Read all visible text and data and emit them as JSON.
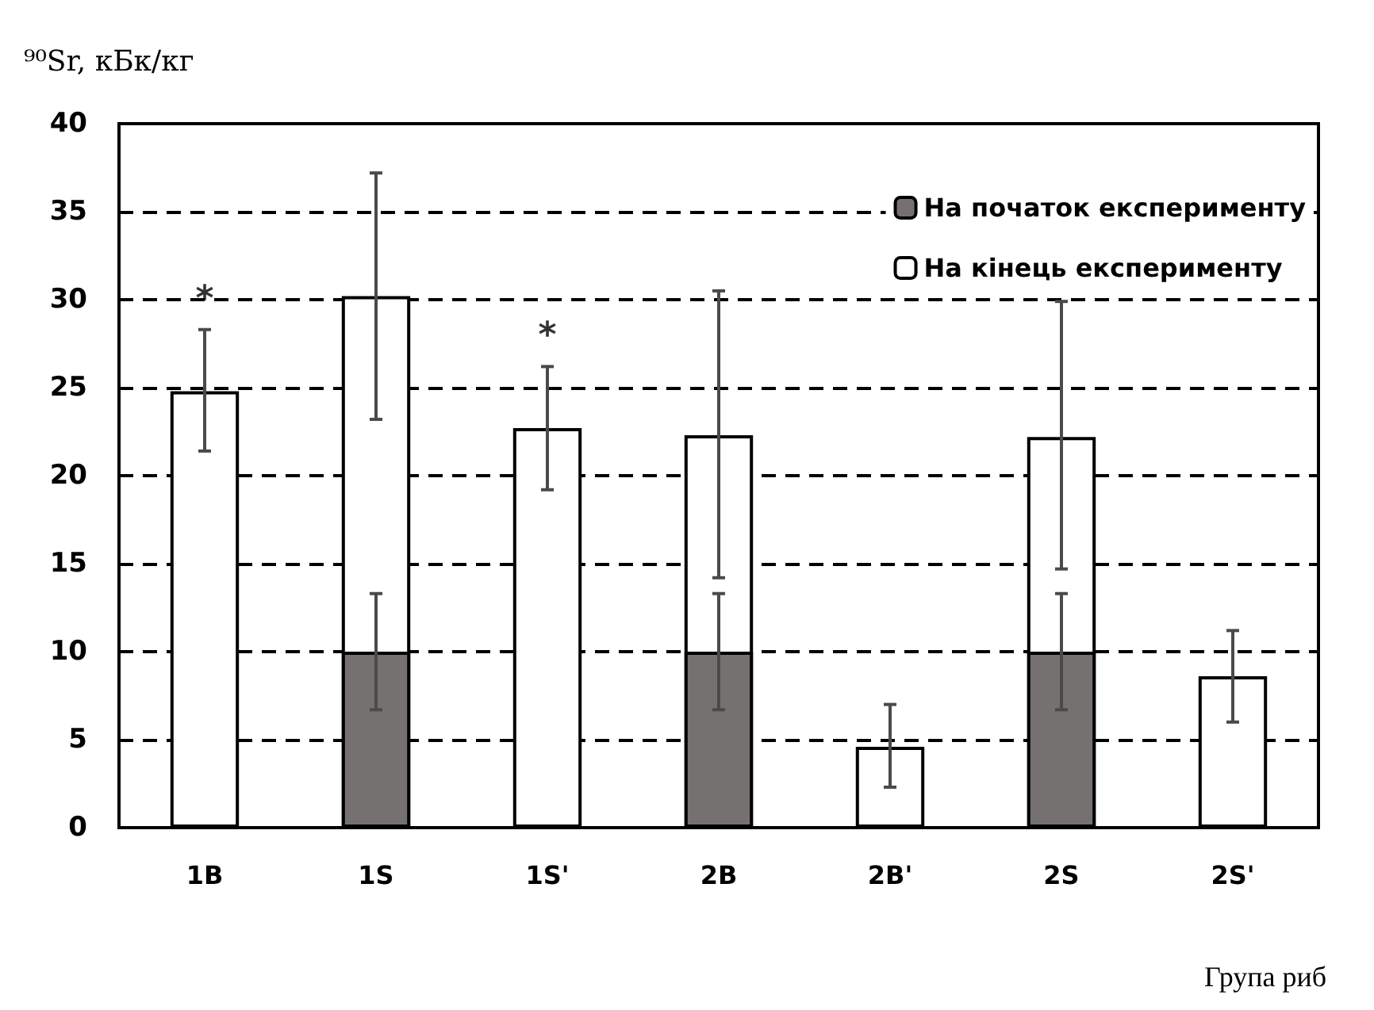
{
  "chart_data": {
    "type": "bar",
    "ylabel": "⁹⁰Sr, кБк/кг",
    "xlabel": "Група риб",
    "categories": [
      "1B",
      "1S",
      "1S'",
      "2B",
      "2B'",
      "2S",
      "2S'"
    ],
    "series": [
      {
        "name": "На початок експерименту",
        "color": "#767171",
        "values": [
          null,
          10,
          null,
          10,
          null,
          10,
          null
        ],
        "errors": [
          null,
          [
            6.7,
            13.3
          ],
          null,
          [
            6.7,
            13.3
          ],
          null,
          [
            6.7,
            13.3
          ],
          null
        ]
      },
      {
        "name": "На кінець експерименту",
        "color": "#ffffff",
        "values": [
          24.8,
          30.2,
          22.7,
          22.3,
          4.6,
          22.2,
          8.6
        ],
        "errors": [
          [
            21.4,
            28.3
          ],
          [
            23.2,
            37.2
          ],
          [
            19.2,
            26.2
          ],
          [
            14.2,
            30.5
          ],
          [
            2.3,
            7.0
          ],
          [
            14.7,
            29.9
          ],
          [
            6.0,
            11.2
          ]
        ]
      }
    ],
    "ylim": [
      0,
      40
    ],
    "yticks": [
      0,
      5,
      10,
      15,
      20,
      25,
      30,
      35,
      40
    ],
    "grid": "y",
    "legend": "top right",
    "annotations": [
      {
        "text": "*",
        "x": "1B",
        "y": 28.3
      },
      {
        "text": "*",
        "x": "1S'",
        "y": 26.2
      }
    ]
  }
}
